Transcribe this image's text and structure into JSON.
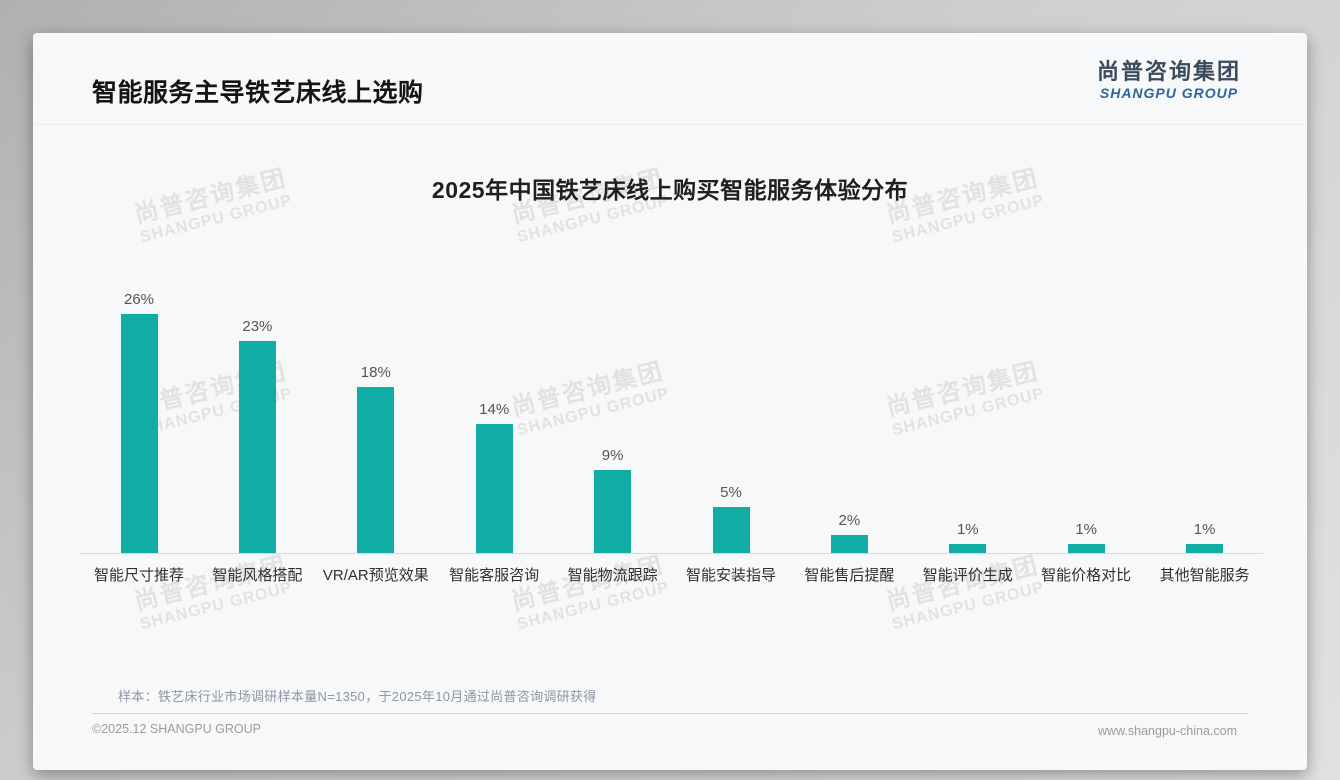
{
  "header": {
    "title": "智能服务主导铁艺床线上选购"
  },
  "logo": {
    "cn": "尚普咨询集团",
    "en": "SHANGPU GROUP"
  },
  "watermark": {
    "cn": "尚普咨询集团",
    "en": "SHANGPU GROUP"
  },
  "chart_data": {
    "type": "bar",
    "title": "2025年中国铁艺床线上购买智能服务体验分布",
    "categories": [
      "智能尺寸推荐",
      "智能风格搭配",
      "VR/AR预览效果",
      "智能客服咨询",
      "智能物流跟踪",
      "智能安装指导",
      "智能售后提醒",
      "智能评价生成",
      "智能价格对比",
      "其他智能服务"
    ],
    "values": [
      26,
      23,
      18,
      14,
      9,
      5,
      2,
      1,
      1,
      1
    ],
    "value_suffix": "%",
    "bar_color": "#0fada3",
    "xlabel": "",
    "ylabel": "",
    "ylim": [
      0,
      28
    ],
    "grid": false,
    "legend": "none",
    "value_labels": true
  },
  "note": {
    "text": "样本：铁艺床行业市场调研样本量N=1350，于2025年10月通过尚普咨询调研获得"
  },
  "footer": {
    "left": "©2025.12 SHANGPU GROUP",
    "right": "www.shangpu-china.com"
  }
}
